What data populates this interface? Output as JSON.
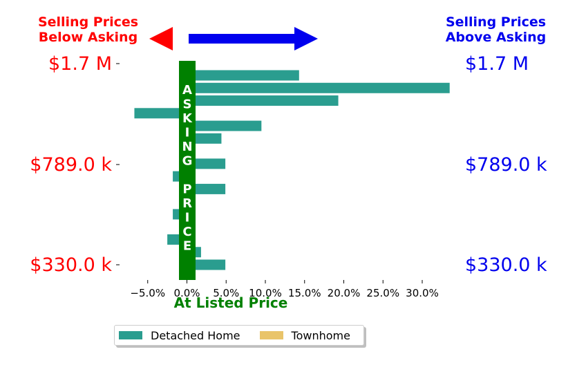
{
  "headers": {
    "below_asking": [
      "Selling Prices",
      "Below Asking"
    ],
    "above_asking": [
      "Selling Prices",
      "Above Asking"
    ]
  },
  "price_labels": [
    "$1.7 M",
    "$789.0 k",
    "$330.0 k"
  ],
  "asking_price_letters": [
    "A",
    "S",
    "K",
    "I",
    "N",
    "G",
    "",
    "P",
    "R",
    "I",
    "C",
    "E"
  ],
  "at_listed_price": "At Listed Price",
  "colors": {
    "below": "#ff0000",
    "above": "#0000ee",
    "asking": "#008000",
    "detached": "#2a9d8f",
    "townhome": "#e9c46a"
  },
  "legend": [
    {
      "label": "Detached Home",
      "color": "#2a9d8f"
    },
    {
      "label": "Townhome",
      "color": "#e9c46a"
    }
  ],
  "chart_data": {
    "type": "bar",
    "orientation": "horizontal",
    "xlabel": "At Listed Price",
    "x_ticks": [
      -5,
      0,
      5,
      10,
      15,
      20,
      25,
      30
    ],
    "x_tick_labels": [
      "−5.0%",
      "0.0%",
      "5.0%",
      "10.0%",
      "15.0%",
      "20.0%",
      "25.0%",
      "30.0%"
    ],
    "xlim": [
      -8.5,
      33.5
    ],
    "y_tick_labels": [
      "$1.7 M",
      "$789.0 k",
      "$330.0 k"
    ],
    "series": [
      {
        "name": "Detached Home",
        "color": "#2a9d8f",
        "values": [
          14.3,
          33.5,
          19.3,
          -6.7,
          9.5,
          4.4,
          1.1,
          4.9,
          -1.8,
          4.9,
          1.1,
          -1.8,
          0.9,
          -2.5,
          1.8,
          4.9
        ]
      },
      {
        "name": "Townhome",
        "color": "#e9c46a",
        "values": []
      }
    ]
  }
}
